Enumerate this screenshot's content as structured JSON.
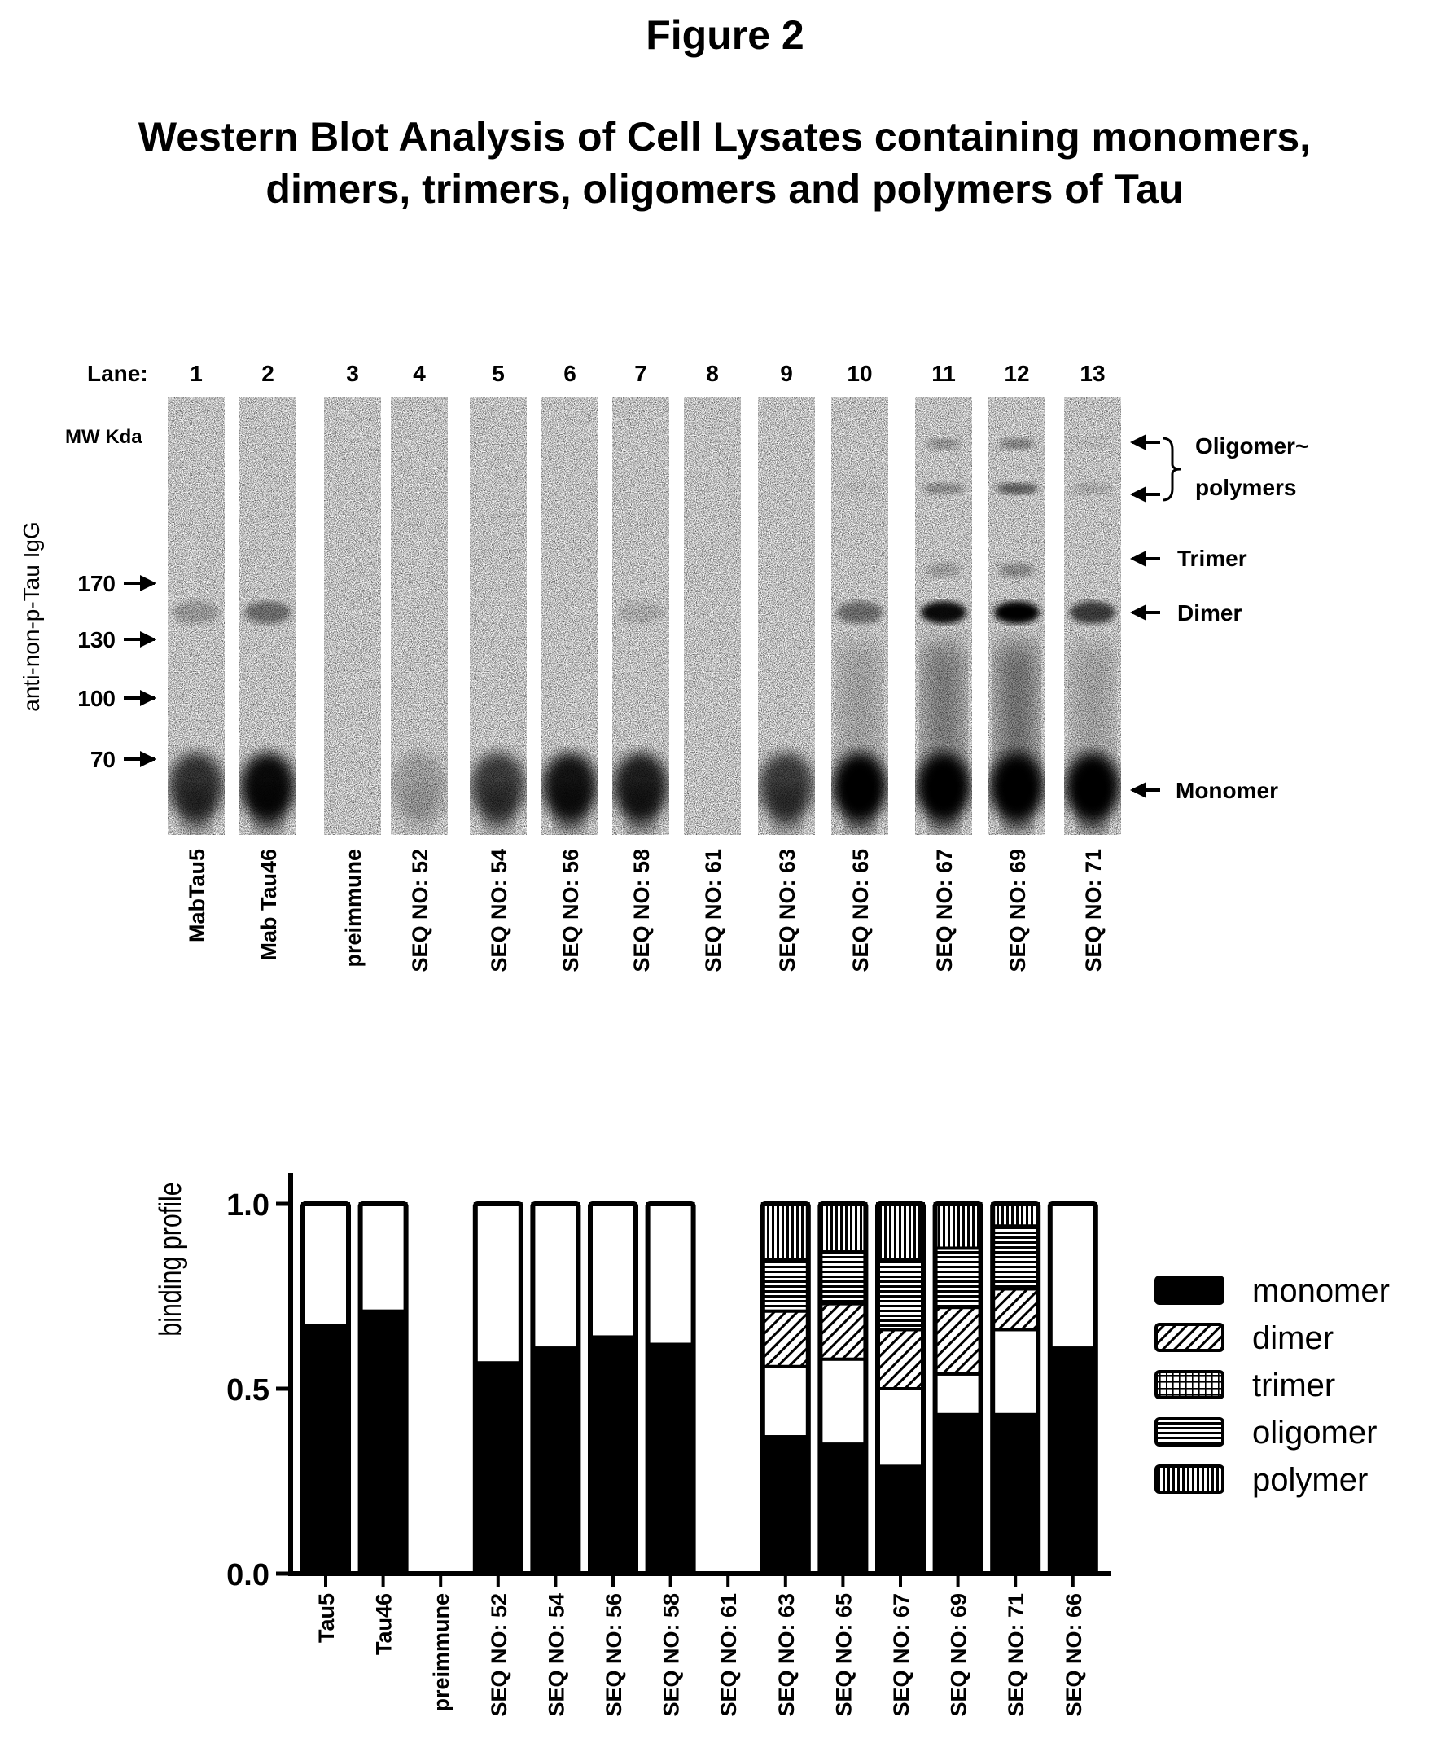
{
  "figure": {
    "title": "Figure 2",
    "subtitle_line1": "Western Blot Analysis of Cell Lysates containing monomers,",
    "subtitle_line2": "dimers, trimers, oligomers and polymers of Tau"
  },
  "blot": {
    "lane_label": "Lane:",
    "mw_label": "MW Kda",
    "y_axis_label": "anti-non-p-Tau IgG",
    "lanes": [
      {
        "number": "1",
        "sample": "MabTau5",
        "monomer": 0.75,
        "dimer": 0.22,
        "trimer": 0,
        "oligomer": 0,
        "polymer": 0,
        "smear": 0
      },
      {
        "number": "2",
        "sample": "Mab Tau46",
        "monomer": 0.95,
        "dimer": 0.45,
        "trimer": 0,
        "oligomer": 0,
        "polymer": 0,
        "smear": 0
      },
      {
        "number": "3",
        "sample": "preimmune",
        "monomer": 0,
        "dimer": 0,
        "trimer": 0,
        "oligomer": 0,
        "polymer": 0,
        "smear": 0
      },
      {
        "number": "4",
        "sample": "SEQ NO: 52",
        "monomer": 0.2,
        "dimer": 0,
        "trimer": 0,
        "oligomer": 0,
        "polymer": 0,
        "smear": 0
      },
      {
        "number": "5",
        "sample": "SEQ NO: 54",
        "monomer": 0.7,
        "dimer": 0,
        "trimer": 0,
        "oligomer": 0,
        "polymer": 0,
        "smear": 0
      },
      {
        "number": "6",
        "sample": "SEQ NO: 56",
        "monomer": 0.9,
        "dimer": 0,
        "trimer": 0,
        "oligomer": 0,
        "polymer": 0,
        "smear": 0
      },
      {
        "number": "7",
        "sample": "SEQ NO: 58",
        "monomer": 0.85,
        "dimer": 0.12,
        "trimer": 0,
        "oligomer": 0,
        "polymer": 0,
        "smear": 0
      },
      {
        "number": "8",
        "sample": "SEQ NO: 61",
        "monomer": 0,
        "dimer": 0,
        "trimer": 0,
        "oligomer": 0,
        "polymer": 0,
        "smear": 0
      },
      {
        "number": "9",
        "sample": "SEQ NO: 63",
        "monomer": 0.7,
        "dimer": 0,
        "trimer": 0,
        "oligomer": 0,
        "polymer": 0,
        "smear": 0
      },
      {
        "number": "10",
        "sample": "SEQ NO: 65",
        "monomer": 1.0,
        "dimer": 0.45,
        "trimer": 0,
        "oligomer": 0.05,
        "polymer": 0,
        "smear": 0.35
      },
      {
        "number": "11",
        "sample": "SEQ NO: 67",
        "monomer": 1.0,
        "dimer": 0.95,
        "trimer": 0.2,
        "oligomer": 0.3,
        "polymer": 0.25,
        "smear": 0.7
      },
      {
        "number": "12",
        "sample": "SEQ NO: 69",
        "monomer": 1.0,
        "dimer": 1.0,
        "trimer": 0.3,
        "oligomer": 0.55,
        "polymer": 0.35,
        "smear": 0.8
      },
      {
        "number": "13",
        "sample": "SEQ NO: 71",
        "monomer": 1.0,
        "dimer": 0.7,
        "trimer": 0,
        "oligomer": 0.15,
        "polymer": 0.05,
        "smear": 0.35
      }
    ],
    "mw_markers": [
      "170",
      "130",
      "100",
      "70"
    ],
    "band_labels": {
      "oligomer_line1": "Oligomer~",
      "oligomer_line2": "polymers",
      "trimer": "Trimer",
      "dimer": "Dimer",
      "monomer": "Monomer"
    }
  },
  "chart_data": {
    "type": "bar",
    "stacked": true,
    "ylabel": "binding profile",
    "xlabel": "",
    "ylim": [
      0,
      1.0
    ],
    "yticks": [
      "0.0",
      "0.5",
      "1.0"
    ],
    "categories": [
      "Tau5",
      "Tau46",
      "preimmune",
      "SEQ NO: 52",
      "SEQ NO: 54",
      "SEQ NO: 56",
      "SEQ NO: 58",
      "SEQ NO: 61",
      "SEQ NO: 63",
      "SEQ NO: 65",
      "SEQ NO: 67",
      "SEQ NO: 69",
      "SEQ NO: 71",
      "SEQ NO: 66"
    ],
    "totals": [
      1,
      1,
      0,
      1,
      1,
      1,
      1,
      0,
      1,
      1,
      1,
      1,
      1,
      1
    ],
    "series": [
      {
        "name": "monomer",
        "fill": "solid",
        "values": [
          0.67,
          0.71,
          0,
          0.57,
          0.61,
          0.64,
          0.62,
          0,
          0.37,
          0.35,
          0.29,
          0.43,
          0.43,
          0.61
        ]
      },
      {
        "name": "",
        "fill": "white",
        "values": [
          0.33,
          0.29,
          0,
          0.43,
          0.39,
          0.36,
          0.38,
          0,
          0.19,
          0.23,
          0.21,
          0.11,
          0.23,
          0.39
        ]
      },
      {
        "name": "dimer",
        "fill": "diagonal",
        "values": [
          0,
          0,
          0,
          0,
          0,
          0,
          0,
          0,
          0.15,
          0.15,
          0.16,
          0.18,
          0.11,
          0
        ]
      },
      {
        "name": "oligomer",
        "fill": "horizontal",
        "values": [
          0,
          0,
          0,
          0,
          0,
          0,
          0,
          0,
          0.14,
          0.14,
          0.19,
          0.16,
          0.17,
          0
        ]
      },
      {
        "name": "polymer",
        "fill": "vertical",
        "values": [
          0,
          0,
          0,
          0,
          0,
          0,
          0,
          0,
          0.15,
          0.13,
          0.15,
          0.12,
          0.06,
          0
        ]
      }
    ],
    "legend": {
      "placement": "right",
      "entries": [
        {
          "name": "monomer",
          "fill": "solid"
        },
        {
          "name": "dimer",
          "fill": "diagonal"
        },
        {
          "name": "trimer",
          "fill": "grid"
        },
        {
          "name": "oligomer",
          "fill": "horizontal"
        },
        {
          "name": "polymer",
          "fill": "vertical"
        }
      ]
    }
  }
}
